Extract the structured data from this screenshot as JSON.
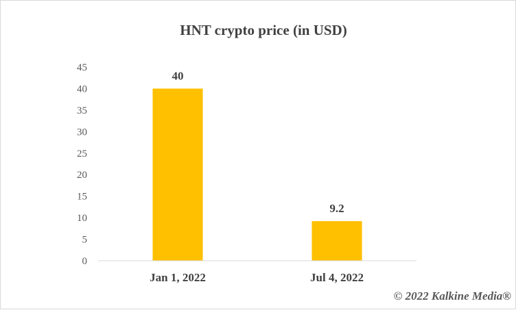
{
  "chart_data": {
    "type": "bar",
    "title": "HNT crypto price (in USD)",
    "categories": [
      "Jan 1, 2022",
      "Jul 4, 2022"
    ],
    "values": [
      40,
      9.2
    ],
    "data_labels": [
      "40",
      "9.2"
    ],
    "ylim": [
      0,
      45
    ],
    "yticks": [
      0,
      5,
      10,
      15,
      20,
      25,
      30,
      35,
      40,
      45
    ],
    "grid": false,
    "legend": "none",
    "bar_color": "#FFC000"
  },
  "credit": "© 2022 Kalkine Media®"
}
